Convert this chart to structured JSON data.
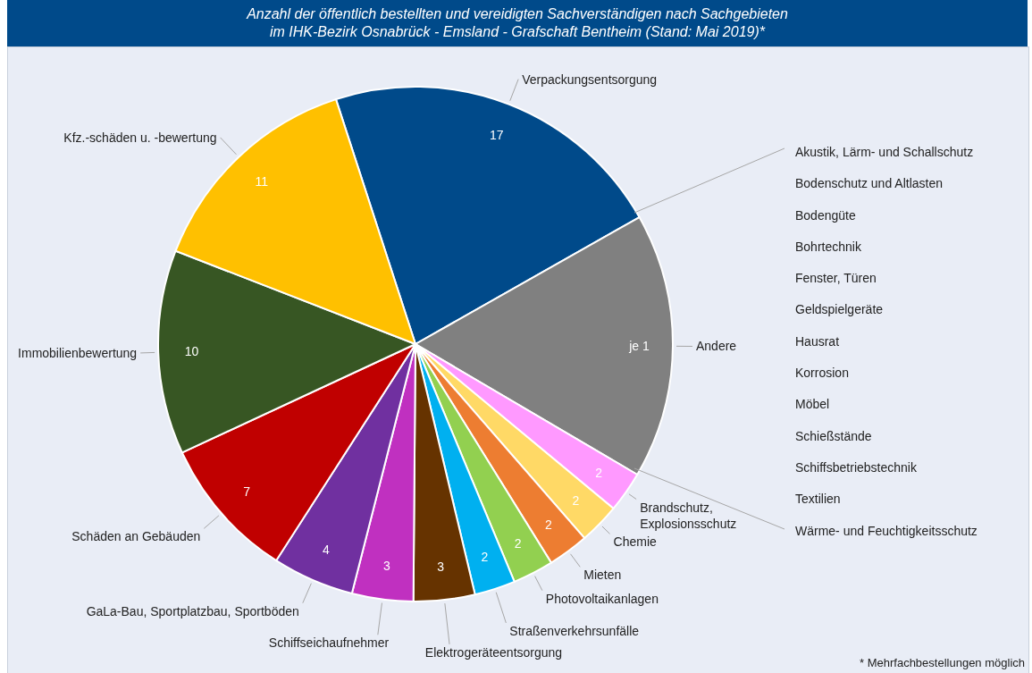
{
  "chart_data": {
    "type": "pie",
    "title": "Anzahl der öffentlich bestellten und vereidigten Sachverständigen nach Sachgebieten\nim IHK-Bezirk Osnabrück - Emsland - Grafschaft Bentheim (Stand: Mai 2019)*",
    "categories": [
      "Verpackungsentsorgung",
      "Andere",
      "Brandschutz,\nExplosionsschutz",
      "Chemie",
      "Mieten",
      "Photovoltaikanlagen",
      "Straßenverkehrsunfälle",
      "Elektrogeräteentsorgung",
      "Schiffseichaufnehmer",
      "GaLa-Bau, Sportplatzbau, Sportböden",
      "Schäden an Gebäuden",
      "Immobilienbewertung",
      "Kfz.-schäden u. -bewertung"
    ],
    "values": [
      17,
      13,
      2,
      2,
      2,
      2,
      2,
      3,
      3,
      4,
      7,
      10,
      11
    ],
    "value_labels": [
      "17",
      "je 1",
      "2",
      "2",
      "2",
      "2",
      "2",
      "3",
      "3",
      "4",
      "7",
      "10",
      "11"
    ],
    "colors": [
      "#004a8a",
      "#808080",
      "#ff99ff",
      "#ffd966",
      "#ed7d31",
      "#92d050",
      "#00b0f0",
      "#663300",
      "#c030c0",
      "#7030a0",
      "#c00000",
      "#375623",
      "#ffc000"
    ],
    "annotations": [
      "Akustik, Lärm- und Schallschutz\nBodenschutz und Altlasten\nBodengüte\nBohrtechnik\nFenster, Türen\nGeldspielgeräte\nHausrat\nKorrosion\nMöbel\nSchießstände\nSchiffsbetriebstechnik\nTextilien\nWärme- und Feuchtigkeitsschutz",
      "* Mehrfachbestellungen möglich"
    ],
    "legend": false
  }
}
